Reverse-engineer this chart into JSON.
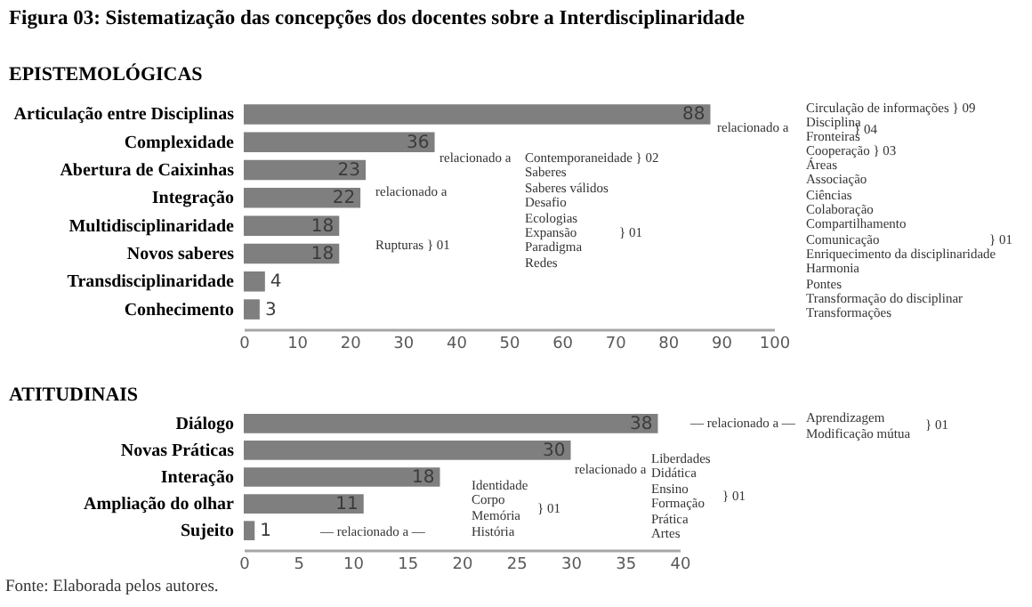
{
  "chart_data": [
    {
      "type": "bar",
      "orientation": "horizontal",
      "title": "Figura 03: Sistematização das concepções dos docentes sobre a Interdisciplinaridade",
      "subtitle": "EPISTEMOLÓGICAS",
      "categories": [
        "Articulação entre Disciplinas",
        "Complexidade",
        "Abertura de Caixinhas",
        "Integração",
        "Multidisciplinaridade",
        "Novos saberes",
        "Transdisciplinaridade",
        "Conhecimento"
      ],
      "values": [
        88,
        36,
        23,
        22,
        18,
        18,
        4,
        3
      ],
      "color": "#7f7f7f",
      "xlim": [
        0,
        100
      ],
      "xticks": [
        0,
        10,
        20,
        30,
        40,
        50,
        60,
        70,
        80,
        90,
        100
      ],
      "data_labels": true,
      "annotations": [
        "relacionado a",
        "Circulação de informações } 09",
        "Disciplina",
        "} 04",
        "Fronteiras",
        "Cooperação } 03",
        "Áreas",
        "Associação",
        "Ciências",
        "Colaboração",
        "Compartilhamento",
        "Comunicação",
        "Enriquecimento da disciplinaridade",
        "Harmonia",
        "Pontes",
        "Transformação do disciplinar",
        "Transformações",
        "} 01",
        "relacionado a",
        "Contemporaneidade } 02",
        "Saberes",
        "Saberes válidos",
        "Desafio",
        "Ecologias",
        "Expansão",
        "Paradigma",
        "Redes",
        "} 01",
        "relacionado a",
        "Rupturas } 01"
      ]
    },
    {
      "type": "bar",
      "orientation": "horizontal",
      "title": "ATITUDINAIS",
      "categories": [
        "Diálogo",
        "Novas Práticas",
        "Interação",
        "Ampliação do olhar",
        "Sujeito"
      ],
      "values": [
        38,
        30,
        18,
        11,
        1
      ],
      "color": "#7f7f7f",
      "xlim": [
        0,
        40
      ],
      "xticks": [
        0,
        5,
        10,
        15,
        20,
        25,
        30,
        35,
        40
      ],
      "data_labels": true,
      "annotations": [
        "— relacionado a —",
        "Aprendizagem",
        "Modificação mútua",
        "} 01",
        "relacionado a",
        "Liberdades",
        "Didática",
        "Ensino",
        "Formação",
        "Prática",
        "Artes",
        "} 01",
        "— relacionado a —",
        "Identidade",
        "Corpo",
        "Memória",
        "História",
        "} 01",
        "Fonte: Elaborada pelos autores."
      ]
    }
  ]
}
